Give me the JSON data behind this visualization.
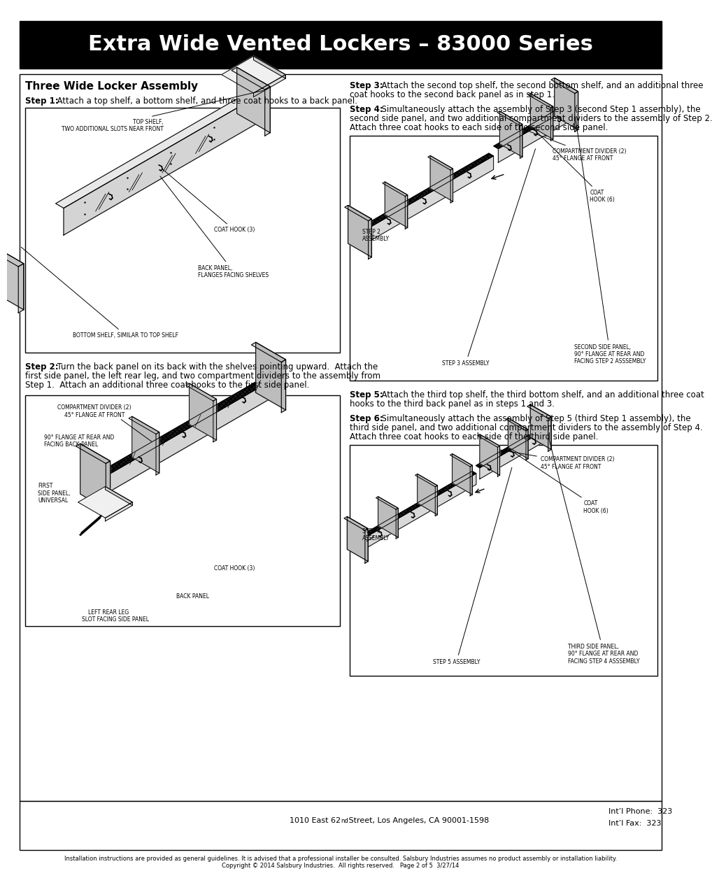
{
  "title": "Extra Wide Vented Lockers – 83000 Series",
  "title_bg": "#000000",
  "title_color": "#ffffff",
  "title_fontsize": 22,
  "section_title": "Three Wide Locker Assembly",
  "step1_bold": "Step 1:",
  "step1_text": "  Attach a top shelf, a bottom shelf, and three coat hooks to a back panel.",
  "step2_bold": "Step 2:",
  "step2_text_line1": "  Turn the back panel on its back with the shelves pointing upward.  Attach the",
  "step2_text_line2": "first side panel, the left rear leg, and two compartment dividers to the assembly from",
  "step2_text_line3": "Step 1.  Attach an additional three coat hooks to the first side panel.",
  "step3_bold": "Step 3:",
  "step3_text_line1": "  Attach the second top shelf, the second bottom shelf, and an additional three",
  "step3_text_line2": "coat hooks to the second back panel as in step 1.",
  "step4_bold": "Step 4:",
  "step4_text_line1": "  Simultaneously attach the assembly of Step 3 (second Step 1 assembly), the",
  "step4_text_line2": "second side panel, and two additional compartment dividers to the assembly of Step 2.",
  "step4_text_line3": "Attach three coat hooks to each side of the second side panel.",
  "step5_bold": "Step 5:",
  "step5_text_line1": "  Attach the third top shelf, the third bottom shelf, and an additional three coat",
  "step5_text_line2": "hooks to the third back panel as in steps 1 and 3.",
  "step6_bold": "Step 6:",
  "step6_text_line1": "  Simultaneously attach the assembly of Step 5 (third Step 1 assembly), the",
  "step6_text_line2": "third side panel, and two additional compartment dividers to the assembly of Step 4.",
  "step6_text_line3": "Attach three coat hooks to each side of the third side panel.",
  "footer_address": "1010 East 62",
  "footer_address_sup": "nd",
  "footer_address2": " Street, Los Angeles, CA 90001-1598",
  "footer_phone": "Int’l Phone:  323",
  "footer_fax": "Int’l Fax:  323",
  "footer_disclaimer": "Installation instructions are provided as general guidelines. It is advised that a professional installer be consulted. Salsbury Industries assumes no product assembly or installation liability.",
  "footer_copyright": "Copyright © 2014 Salsbury Industries.  All rights reserved.   Page 2 of 5  3/27/14",
  "page_bg": "#ffffff"
}
